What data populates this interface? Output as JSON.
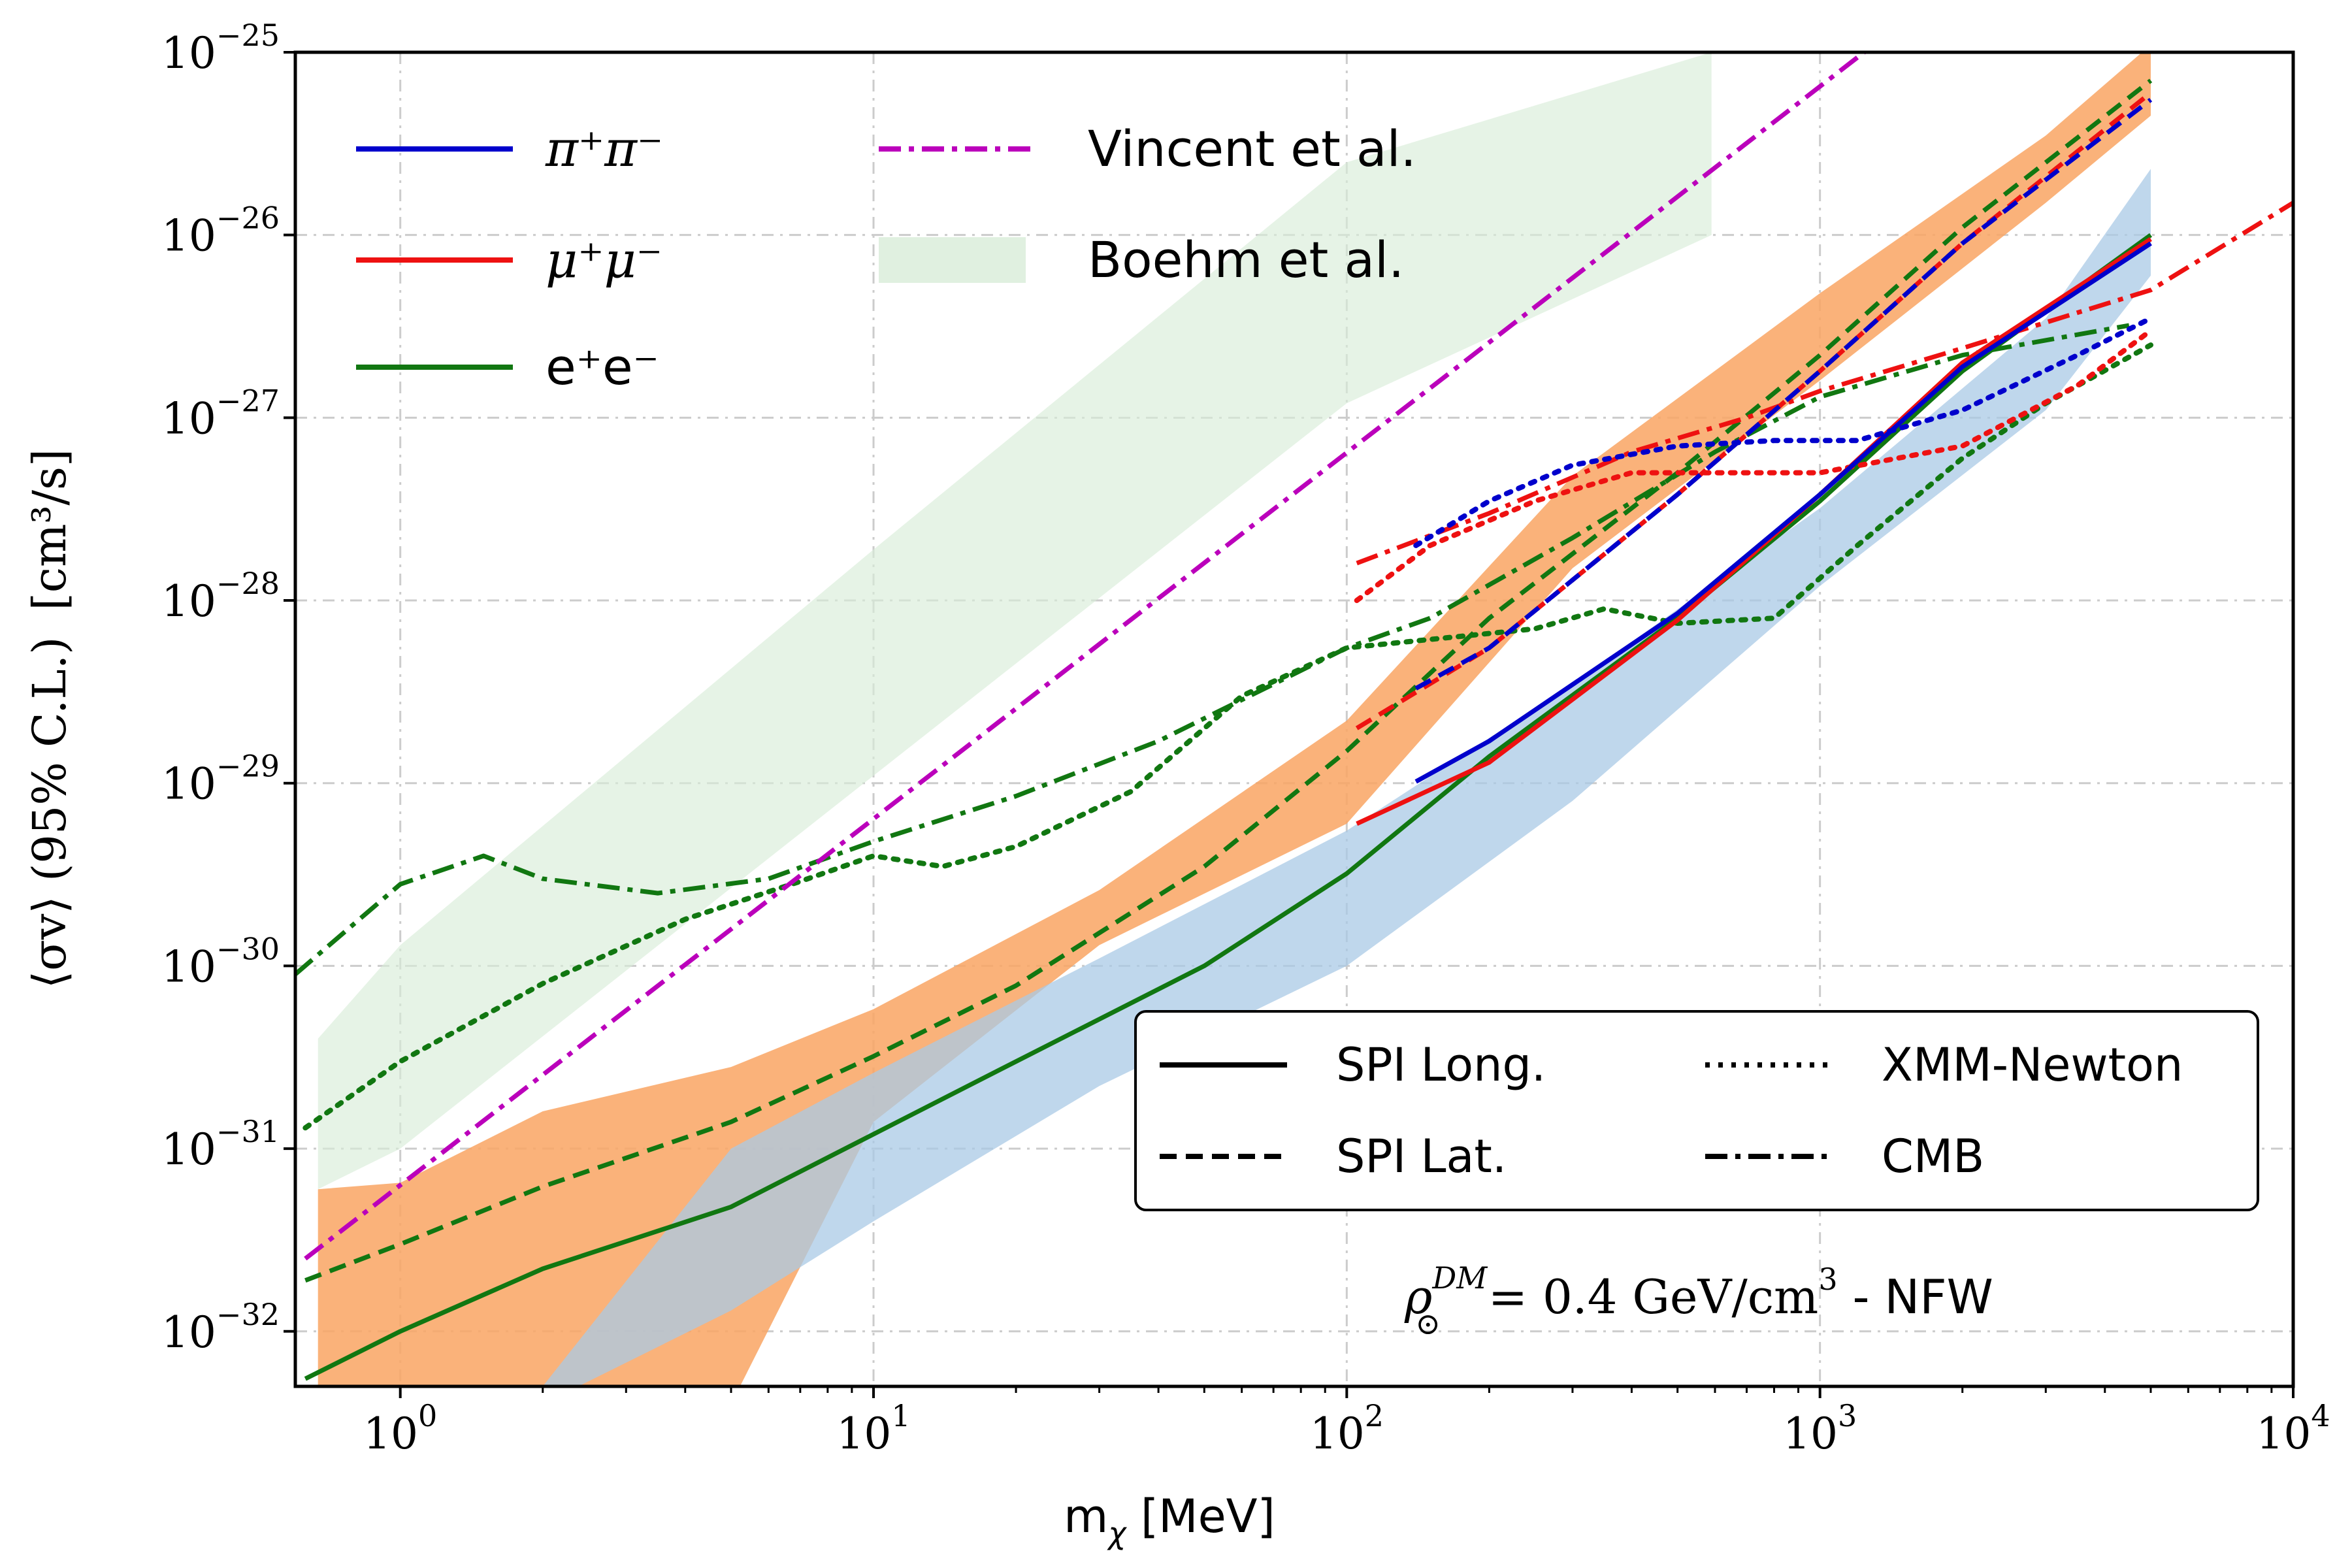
{
  "chart_data": {
    "type": "line",
    "xscale": "log",
    "yscale": "log",
    "xlim": [
      0.6,
      10000
    ],
    "ylim": [
      5e-33,
      1e-25
    ],
    "grid": true,
    "xlabel": {
      "base": "m",
      "sub": "χ",
      "unit": " [MeV]"
    },
    "ylabel": {
      "main": "⟨σv⟩ (95% C.L.)",
      "unit": "[cm³/s]"
    },
    "x_ticks": [
      {
        "base": "10",
        "exp": "0",
        "value": 1
      },
      {
        "base": "10",
        "exp": "1",
        "value": 10
      },
      {
        "base": "10",
        "exp": "2",
        "value": 100
      },
      {
        "base": "10",
        "exp": "3",
        "value": 1000
      },
      {
        "base": "10",
        "exp": "4",
        "value": 10000
      }
    ],
    "y_ticks": [
      {
        "base": "10",
        "exp": "−32",
        "value": 1e-32
      },
      {
        "base": "10",
        "exp": "−31",
        "value": 1e-31
      },
      {
        "base": "10",
        "exp": "−30",
        "value": 1e-30
      },
      {
        "base": "10",
        "exp": "−29",
        "value": 1e-29
      },
      {
        "base": "10",
        "exp": "−28",
        "value": 1e-28
      },
      {
        "base": "10",
        "exp": "−27",
        "value": 1e-27
      },
      {
        "base": "10",
        "exp": "−26",
        "value": 1e-26
      },
      {
        "base": "10",
        "exp": "−25",
        "value": 1e-25
      }
    ],
    "annotation": {
      "text_main": "ρ",
      "sup": "DM",
      "sub": "⊙",
      "rest": " = 0.4 GeV/cm",
      "rest_sup": "3",
      "suffix": " - NFW"
    },
    "legend_channels": [
      {
        "label": "π⁺π⁻",
        "color": "#0000cc"
      },
      {
        "label": "μ⁺μ⁻",
        "color": "#ee1111"
      },
      {
        "label": "e⁺e⁻",
        "color": "#117711"
      },
      {
        "label": "Vincent et al.",
        "color": "#bb00bb"
      },
      {
        "label": "Boehm et al.",
        "color": "#d8ecd8"
      }
    ],
    "legend_styles": [
      {
        "label": "SPI Long.",
        "dash": "solid"
      },
      {
        "label": "SPI Lat.",
        "dash": "dashed"
      },
      {
        "label": "XMM-Newton",
        "dash": "dotted"
      },
      {
        "label": "CMB",
        "dash": "dashdot"
      }
    ],
    "bands": [
      {
        "name": "Boehm et al.",
        "color": "#d8ecd8",
        "opacity": 0.65,
        "x": [
          0.67,
          1,
          10,
          100,
          590
        ],
        "lower": [
          6e-32,
          1e-31,
          1.1e-29,
          1.2e-27,
          1e-26
        ],
        "upper": [
          4e-31,
          1.3e-30,
          1.9e-28,
          2.5e-26,
          1e-25
        ]
      },
      {
        "name": "SPI Lat. band",
        "color": "#f9a563",
        "opacity": 0.85,
        "x": [
          0.67,
          1,
          2,
          5,
          10,
          30,
          100,
          300,
          1000,
          3000,
          5000
        ],
        "lower": [
          3e-33,
          3e-33,
          3e-33,
          4e-33,
          1.4e-31,
          1.3e-30,
          6e-30,
          1.5e-28,
          1.6e-27,
          1.5e-26,
          4.5e-26
        ],
        "upper": [
          6e-32,
          6.5e-32,
          1.6e-31,
          2.8e-31,
          5.8e-31,
          2.6e-30,
          2.2e-29,
          4.8e-28,
          4.8e-27,
          3.5e-26,
          1.1e-25
        ]
      },
      {
        "name": "SPI Long. band",
        "color": "#a9c9e6",
        "opacity": 0.75,
        "x": [
          2,
          5,
          10,
          30,
          100,
          300,
          1000,
          3000,
          5000
        ],
        "lower": [
          4e-33,
          1.3e-32,
          4e-32,
          2.2e-31,
          1e-30,
          8e-30,
          1.2e-28,
          1.1e-27,
          6e-27
        ],
        "upper": [
          5e-33,
          1e-31,
          2.6e-31,
          1.1e-30,
          5.5e-30,
          3.5e-29,
          3.2e-28,
          3.5e-27,
          2.3e-26
        ]
      }
    ],
    "series": [
      {
        "group": "ee",
        "color": "#117711",
        "dash": "solid",
        "x": [
          0.63,
          1,
          2,
          5,
          10,
          20,
          50,
          100,
          200,
          500,
          1000,
          2000,
          5000
        ],
        "y": [
          5.5e-33,
          1e-32,
          2.2e-32,
          4.8e-32,
          1.2e-31,
          3e-31,
          1e-30,
          3.2e-30,
          1.4e-29,
          8e-29,
          3.5e-28,
          1.8e-27,
          1e-26
        ]
      },
      {
        "group": "ee",
        "color": "#117711",
        "dash": "dashed",
        "x": [
          0.63,
          1,
          2,
          5,
          10,
          20,
          50,
          100,
          200,
          500,
          1000,
          2000,
          5000
        ],
        "y": [
          1.9e-32,
          3e-32,
          6.2e-32,
          1.4e-31,
          3.2e-31,
          7.8e-31,
          3.5e-30,
          1.5e-29,
          8e-29,
          5e-28,
          2.2e-27,
          1.1e-26,
          7e-26
        ]
      },
      {
        "group": "ee",
        "color": "#117711",
        "dash": "dotted",
        "x": [
          0.63,
          1,
          2,
          4,
          7,
          10,
          14,
          20,
          35,
          60,
          100,
          250,
          350,
          500,
          800,
          1200,
          2000,
          3000,
          5000
        ],
        "y": [
          1.3e-31,
          3e-31,
          8e-31,
          1.8e-30,
          2.9e-30,
          4e-30,
          3.5e-30,
          4.5e-30,
          9e-30,
          3e-29,
          5.5e-29,
          7e-29,
          9e-29,
          7.5e-29,
          8e-29,
          2e-28,
          6e-28,
          1.2e-27,
          2.5e-27
        ]
      },
      {
        "group": "ee",
        "color": "#117711",
        "dash": "dashdot",
        "x": [
          0.6,
          1,
          1.5,
          2,
          3.5,
          6,
          10,
          20,
          40,
          100,
          150,
          300,
          600,
          1000,
          2000,
          4500
        ],
        "y": [
          9e-31,
          2.8e-30,
          4e-30,
          3e-30,
          2.5e-30,
          3e-30,
          4.8e-30,
          8.5e-30,
          1.7e-29,
          5.5e-29,
          8e-29,
          2.2e-28,
          6.5e-28,
          1.3e-27,
          2.2e-27,
          3.2e-27
        ]
      },
      {
        "group": "mumu",
        "color": "#ee1111",
        "dash": "solid",
        "x": [
          105,
          200,
          500,
          1000,
          2000,
          5000
        ],
        "y": [
          6e-30,
          1.3e-29,
          7.8e-29,
          3.8e-28,
          2e-27,
          9.5e-27
        ]
      },
      {
        "group": "mumu",
        "color": "#ee1111",
        "dash": "dashed",
        "x": [
          105,
          200,
          500,
          1000,
          2000,
          5000
        ],
        "y": [
          2e-29,
          5.5e-29,
          3.8e-28,
          1.8e-27,
          9e-27,
          6e-26
        ]
      },
      {
        "group": "mumu",
        "color": "#ee1111",
        "dash": "dotted",
        "x": [
          105,
          150,
          250,
          400,
          600,
          1000,
          2000,
          3500,
          5000
        ],
        "y": [
          1e-28,
          2e-28,
          3.5e-28,
          5e-28,
          5e-28,
          5e-28,
          7e-28,
          1.5e-27,
          3e-27
        ]
      },
      {
        "group": "mumu",
        "color": "#ee1111",
        "dash": "dashdot",
        "x": [
          105,
          200,
          400,
          700,
          1000,
          2000,
          5000,
          10000
        ],
        "y": [
          1.6e-28,
          3e-28,
          6.5e-28,
          1e-27,
          1.4e-27,
          2.4e-27,
          5e-27,
          1.5e-26
        ]
      },
      {
        "group": "pipi",
        "color": "#0000cc",
        "dash": "solid",
        "x": [
          140,
          200,
          500,
          1000,
          2000,
          5000
        ],
        "y": [
          1.02e-29,
          1.7e-29,
          8.5e-29,
          3.8e-28,
          1.9e-27,
          9e-27
        ]
      },
      {
        "group": "pipi",
        "color": "#0000cc",
        "dash": "dashed",
        "x": [
          140,
          200,
          500,
          1000,
          2000,
          5000
        ],
        "y": [
          3.3e-29,
          5.5e-29,
          3.8e-28,
          1.8e-27,
          9e-27,
          5.5e-26
        ]
      },
      {
        "group": "pipi",
        "color": "#0000cc",
        "dash": "dotted",
        "x": [
          140,
          200,
          300,
          500,
          800,
          1200,
          2000,
          3500,
          5000
        ],
        "y": [
          2e-28,
          3.5e-28,
          5.5e-28,
          7e-28,
          7.5e-28,
          7.5e-28,
          1.1e-27,
          2.2e-27,
          3.5e-27
        ]
      },
      {
        "group": "vincent",
        "color": "#bb00bb",
        "dash": "dashdot",
        "x": [
          0.63,
          1300
        ],
        "y": [
          2.5e-32,
          1.1e-25
        ]
      }
    ]
  }
}
